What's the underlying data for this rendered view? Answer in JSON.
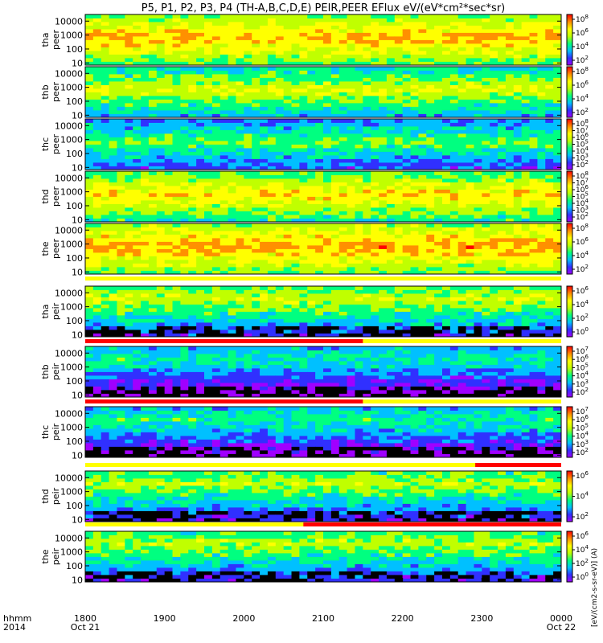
{
  "title": "P5, P1, P2, P3, P4 (TH-A,B,C,D,E) PEIR,PEER EFlux eV/(eV*cm²*sec*sr)",
  "colorbar_label": "[eV/(cm2-s-sr-eV)] (A)",
  "colors": {
    "background": "#ffffff",
    "fill_bad": "#000000",
    "flag_on": "#ff0000",
    "flag_off": "#ffff00",
    "colormap": [
      "#a000ff",
      "#3030ff",
      "#00c0ff",
      "#00ff80",
      "#c0ff00",
      "#ffff00",
      "#ff9000",
      "#ff0000"
    ]
  },
  "chart_data": {
    "type": "heatmap",
    "x_ticks": [
      "1800",
      "1900",
      "2000",
      "2100",
      "2200",
      "2300",
      "0000"
    ],
    "x_start_label": [
      "hhmm",
      "2014"
    ],
    "x_date_labels": [
      "Oct 21",
      "Oct 22"
    ],
    "xlim": [
      "2014-10-21 18:00",
      "2014-10-22 00:00"
    ],
    "y_scale": "log",
    "ylim_eV": [
      7,
      30000
    ],
    "y_ticks": [
      "10",
      "100",
      "1000",
      "10000"
    ],
    "panels": [
      {
        "probe": "tha",
        "species": "peer",
        "ylabel": [
          "tha",
          "peer"
        ],
        "cb_exponents": [
          "8",
          "6",
          "4",
          "2"
        ],
        "has_flag": false,
        "level": 0.78
      },
      {
        "probe": "thb",
        "species": "peer",
        "ylabel": [
          "thb",
          "peer"
        ],
        "cb_exponents": [
          "8",
          "6",
          "4",
          "2"
        ],
        "has_flag": false,
        "level": 0.62
      },
      {
        "probe": "thc",
        "species": "peer",
        "ylabel": [
          "thc",
          "peer"
        ],
        "cb_exponents": [
          "8",
          "7",
          "6",
          "5",
          "4",
          "3",
          "2"
        ],
        "has_flag": false,
        "level": 0.5
      },
      {
        "probe": "thd",
        "species": "peer",
        "ylabel": [
          "thd",
          "peer"
        ],
        "cb_exponents": [
          "8",
          "7",
          "6",
          "5",
          "4",
          "3",
          "2"
        ],
        "has_flag": false,
        "level": 0.72
      },
      {
        "probe": "the",
        "species": "peer",
        "ylabel": [
          "the",
          "peer"
        ],
        "cb_exponents": [
          "8",
          "6",
          "4",
          "2"
        ],
        "has_flag": true,
        "level": 0.8
      },
      {
        "probe": "tha",
        "species": "peir",
        "ylabel": [
          "tha",
          "peir"
        ],
        "cb_exponents": [
          "6",
          "4",
          "2",
          "0"
        ],
        "has_flag": true,
        "level": 0.6
      },
      {
        "probe": "thb",
        "species": "peir",
        "ylabel": [
          "thb",
          "peir"
        ],
        "cb_exponents": [
          "7",
          "6",
          "5",
          "4",
          "3",
          "2"
        ],
        "has_flag": true,
        "level": 0.42
      },
      {
        "probe": "thc",
        "species": "peir",
        "ylabel": [
          "thc",
          "peir"
        ],
        "cb_exponents": [
          "7",
          "6",
          "5",
          "4",
          "3",
          "2"
        ],
        "has_flag": true,
        "level": 0.45
      },
      {
        "probe": "thd",
        "species": "peir",
        "ylabel": [
          "thd",
          "peir"
        ],
        "cb_exponents": [
          "6",
          "4",
          "2"
        ],
        "has_flag": true,
        "level": 0.58
      },
      {
        "probe": "the",
        "species": "peir",
        "ylabel": [
          "the",
          "peir"
        ],
        "cb_exponents": [
          "6",
          "4",
          "2",
          "0"
        ],
        "has_flag": false,
        "level": 0.58
      }
    ],
    "flag_bars": [
      {
        "after_panel": "the peer",
        "red_intervals": []
      },
      {
        "after_panel": "tha peir",
        "red_intervals": [
          [
            "2014-10-21 18:00",
            "2014-10-21 21:30"
          ]
        ]
      },
      {
        "after_panel": "thb peir",
        "red_intervals": [
          [
            "2014-10-21 18:00",
            "2014-10-21 21:30"
          ]
        ]
      },
      {
        "after_panel": "thc peir",
        "red_intervals": [
          [
            "2014-10-21 22:55",
            "2014-10-22 00:00"
          ]
        ]
      },
      {
        "after_panel": "thd peir",
        "red_intervals": [
          [
            "2014-10-21 20:45",
            "2014-10-22 00:00"
          ]
        ]
      }
    ]
  }
}
